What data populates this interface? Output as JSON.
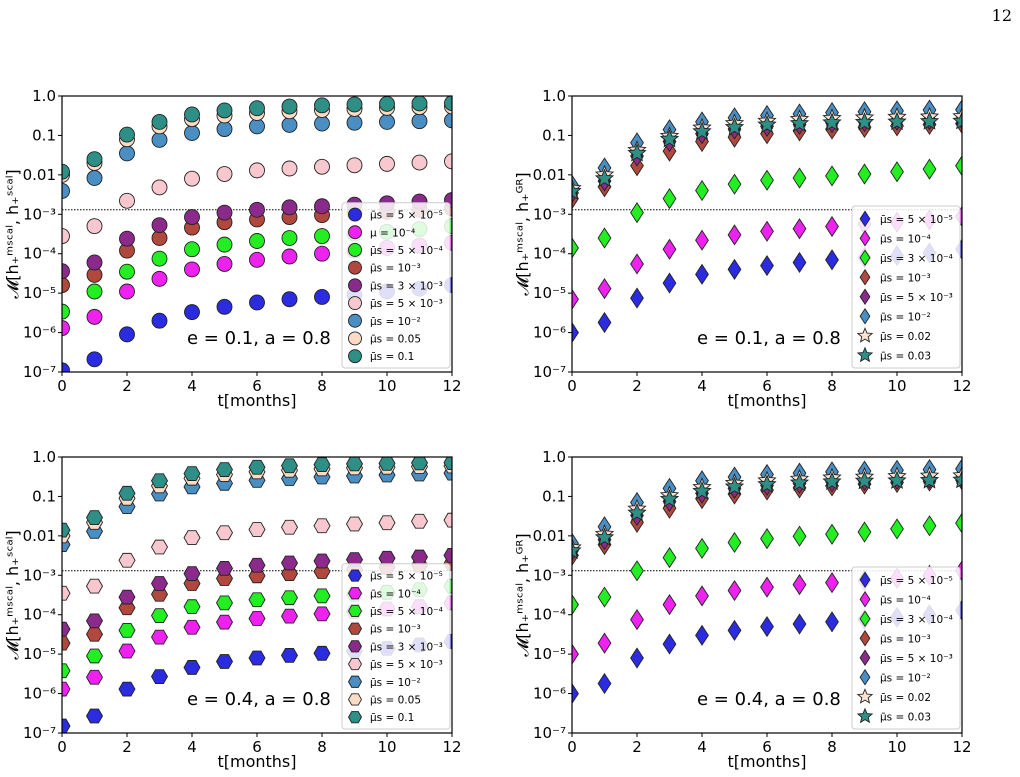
{
  "page": {
    "number": "12"
  },
  "chart_data": [
    {
      "type": "scatter",
      "marker": "circle",
      "annotation": "e = 0.1, a = 0.8",
      "xlabel": "t[months]",
      "ylabel": "𝓜[h₊ᵐˢᶜᵃˡ, h₊ˢᶜᵃˡ]",
      "yscale": "log",
      "xlim": [
        0,
        12
      ],
      "ylim": [
        1e-07,
        1
      ],
      "x_ticks": [
        "0",
        "2",
        "4",
        "6",
        "8",
        "10",
        "12"
      ],
      "y_ticks": [
        "10⁻⁷",
        "10⁻⁶",
        "10⁻⁵",
        "10⁻⁴",
        "10⁻³",
        "0.01",
        "0.1",
        "1.0"
      ],
      "reference_line": 0.0013,
      "legend_position": "lower-right",
      "x": [
        0,
        1,
        2,
        3,
        4,
        5,
        6,
        7,
        8,
        9,
        10,
        11,
        12
      ],
      "series": [
        {
          "name": "μ̄s = 5 × 10⁻⁵",
          "color": "#2b2bdf",
          "values": [
            1.1e-07,
            2.1e-07,
            9e-07,
            2e-06,
            3.3e-06,
            4.5e-06,
            5.8e-06,
            7e-06,
            8e-06,
            9e-06,
            1.1e-05,
            1.3e-05,
            1.6e-05
          ]
        },
        {
          "name": "μ = 10⁻⁴",
          "color": "#ee22ee",
          "values": [
            1.3e-06,
            2.5e-06,
            1.1e-05,
            2.3e-05,
            4e-05,
            5.5e-05,
            7e-05,
            8.5e-05,
            0.0001,
            0.00012,
            0.00014,
            0.00016,
            0.00019
          ]
        },
        {
          "name": "μ̄s = 5 × 10⁻⁴",
          "color": "#22ee22",
          "values": [
            3.4e-06,
            1.1e-05,
            3.5e-05,
            7.5e-05,
            0.00013,
            0.00017,
            0.00021,
            0.00025,
            0.00028,
            0.00032,
            0.00036,
            0.00042,
            0.0005
          ]
        },
        {
          "name": "μ̄s = 10⁻³",
          "color": "#b0483e",
          "values": [
            1.6e-05,
            2.9e-05,
            0.00012,
            0.00025,
            0.00046,
            0.00063,
            0.00074,
            0.00085,
            0.00095,
            0.00105,
            0.00115,
            0.0013,
            0.0014
          ]
        },
        {
          "name": "μ̄s = 3 × 10⁻³",
          "color": "#8b2a8b",
          "values": [
            3.6e-05,
            6e-05,
            0.00024,
            0.00053,
            0.00085,
            0.0011,
            0.0013,
            0.0015,
            0.0016,
            0.00175,
            0.0019,
            0.0021,
            0.0023
          ]
        },
        {
          "name": "μ̄s = 5 × 10⁻³",
          "color": "#f9c8cf",
          "values": [
            0.00028,
            0.0005,
            0.0022,
            0.0048,
            0.008,
            0.0105,
            0.013,
            0.0145,
            0.016,
            0.0175,
            0.019,
            0.0205,
            0.022
          ]
        },
        {
          "name": "μ̄s = 10⁻²",
          "color": "#4a8fc4",
          "values": [
            0.0039,
            0.0083,
            0.035,
            0.077,
            0.115,
            0.145,
            0.17,
            0.185,
            0.2,
            0.21,
            0.22,
            0.23,
            0.24
          ]
        },
        {
          "name": "μ̄s = 0.05",
          "color": "#fcdcc4",
          "values": [
            0.01,
            0.02,
            0.08,
            0.17,
            0.26,
            0.32,
            0.37,
            0.41,
            0.44,
            0.47,
            0.5,
            0.52,
            0.54
          ]
        },
        {
          "name": "μ̄s = 0.1",
          "color": "#2e8f86",
          "values": [
            0.012,
            0.025,
            0.105,
            0.22,
            0.34,
            0.43,
            0.49,
            0.54,
            0.58,
            0.61,
            0.63,
            0.65,
            0.66
          ]
        }
      ]
    },
    {
      "type": "scatter",
      "marker": "diamond",
      "annotation": "e = 0.1, a = 0.8",
      "xlabel": "t[months]",
      "ylabel": "𝓜[h₊ᵐˢᶜᵃˡ, h₊ᴳᴿ]",
      "yscale": "log",
      "xlim": [
        0,
        12
      ],
      "ylim": [
        1e-07,
        1
      ],
      "x_ticks": [
        "0",
        "2",
        "4",
        "6",
        "8",
        "10",
        "12"
      ],
      "y_ticks": [
        "10⁻⁷",
        "10⁻⁶",
        "10⁻⁵",
        "10⁻⁴",
        "10⁻³",
        "0.01",
        "0.1",
        "1.0"
      ],
      "reference_line": 0.0013,
      "legend_position": "lower-right",
      "x": [
        0,
        1,
        2,
        3,
        4,
        5,
        6,
        7,
        8,
        9,
        10,
        11,
        12
      ],
      "series": [
        {
          "name": "μ̄s = 5 × 10⁻⁵",
          "color": "#2b2bdf",
          "marker": "diamond",
          "values": [
            1e-06,
            1.8e-06,
            7.5e-06,
            1.8e-05,
            3e-05,
            4e-05,
            5e-05,
            6e-05,
            7e-05,
            8e-05,
            9e-05,
            0.000105,
            0.00013
          ]
        },
        {
          "name": "μ̄s = 10⁻⁴",
          "color": "#ee22ee",
          "marker": "diamond",
          "values": [
            7e-06,
            1.3e-05,
            5.5e-05,
            0.00013,
            0.00022,
            0.0003,
            0.00037,
            0.00043,
            0.00049,
            0.00056,
            0.00063,
            0.00072,
            0.00088
          ]
        },
        {
          "name": "μ̄s = 3 × 10⁻⁴",
          "color": "#22ee22",
          "marker": "diamond",
          "values": [
            0.00014,
            0.00025,
            0.0011,
            0.0025,
            0.004,
            0.0058,
            0.0073,
            0.0083,
            0.0094,
            0.0105,
            0.012,
            0.014,
            0.017
          ]
        },
        {
          "name": "μ̄s = 10⁻³",
          "color": "#b0483e",
          "marker": "diamond",
          "values": [
            0.0025,
            0.005,
            0.017,
            0.04,
            0.07,
            0.09,
            0.11,
            0.13,
            0.145,
            0.16,
            0.175,
            0.19,
            0.2
          ]
        },
        {
          "name": "μ̄s = 5 × 10⁻³",
          "color": "#8b2a8b",
          "marker": "diamond",
          "values": [
            0.0035,
            0.007,
            0.03,
            0.07,
            0.11,
            0.145,
            0.17,
            0.19,
            0.21,
            0.225,
            0.24,
            0.25,
            0.26
          ]
        },
        {
          "name": "μ̄s = 10⁻²",
          "color": "#4a8fc4",
          "marker": "diamond",
          "values": [
            0.0055,
            0.015,
            0.065,
            0.14,
            0.22,
            0.28,
            0.32,
            0.35,
            0.38,
            0.4,
            0.42,
            0.44,
            0.45
          ]
        },
        {
          "name": "μ̄s = 0.02",
          "color": "#fce2cf",
          "marker": "star",
          "values": [
            0.0045,
            0.01,
            0.042,
            0.095,
            0.155,
            0.2,
            0.23,
            0.255,
            0.27,
            0.28,
            0.29,
            0.295,
            0.3
          ]
        },
        {
          "name": "μ̄s = 0.03",
          "color": "#2e8f86",
          "marker": "star",
          "values": [
            0.0038,
            0.008,
            0.035,
            0.08,
            0.125,
            0.16,
            0.185,
            0.2,
            0.21,
            0.215,
            0.22,
            0.225,
            0.23
          ]
        }
      ]
    },
    {
      "type": "scatter",
      "marker": "hexagon",
      "annotation": "e = 0.4, a = 0.8",
      "xlabel": "t[months]",
      "ylabel": "𝓜[h₊ᵐˢᶜᵃˡ, h₊ˢᶜᵃˡ]",
      "yscale": "log",
      "xlim": [
        0,
        12
      ],
      "ylim": [
        1e-07,
        1
      ],
      "x_ticks": [
        "0",
        "2",
        "4",
        "6",
        "8",
        "10",
        "12"
      ],
      "y_ticks": [
        "10⁻⁷",
        "10⁻⁶",
        "10⁻⁵",
        "10⁻⁴",
        "10⁻³",
        "0.01",
        "0.1",
        "1.0"
      ],
      "reference_line": 0.0013,
      "legend_position": "lower-right",
      "x": [
        0,
        1,
        2,
        3,
        4,
        5,
        6,
        7,
        8,
        9,
        10,
        11,
        12
      ],
      "series": [
        {
          "name": "μ̄s = 5 × 10⁻⁵",
          "color": "#2b2bdf",
          "values": [
            1.5e-07,
            2.7e-07,
            1.3e-06,
            2.7e-06,
            4.6e-06,
            6.5e-06,
            8e-06,
            9.3e-06,
            1.05e-05,
            1.2e-05,
            1.4e-05,
            1.7e-05,
            2.1e-05
          ]
        },
        {
          "name": "μ̄s = 10⁻⁴",
          "color": "#ee22ee",
          "values": [
            1.3e-06,
            2.6e-06,
            1.2e-05,
            2.7e-05,
            4.8e-05,
            6.5e-05,
            8e-05,
            9.2e-05,
            0.000105,
            0.00012,
            0.00014,
            0.00016,
            0.0002
          ]
        },
        {
          "name": "μ̄s = 5 × 10⁻⁴",
          "color": "#22ee22",
          "values": [
            3.8e-06,
            9e-06,
            4e-05,
            9.5e-05,
            0.00016,
            0.0002,
            0.00024,
            0.00027,
            0.0003,
            0.00033,
            0.00037,
            0.00043,
            0.00053
          ]
        },
        {
          "name": "μ̄s = 10⁻³",
          "color": "#b0483e",
          "values": [
            1.9e-05,
            3.2e-05,
            0.00015,
            0.00033,
            0.00062,
            0.00083,
            0.00097,
            0.0011,
            0.00125,
            0.0014,
            0.0016,
            0.0018,
            0.002
          ]
        },
        {
          "name": "μ̄s = 3 × 10⁻³",
          "color": "#8b2a8b",
          "values": [
            4.3e-05,
            7e-05,
            0.00028,
            0.00062,
            0.0011,
            0.0015,
            0.0018,
            0.00205,
            0.0023,
            0.0025,
            0.0027,
            0.0029,
            0.0032
          ]
        },
        {
          "name": "μ̄s = 5 × 10⁻³",
          "color": "#f9c8cf",
          "values": [
            0.00035,
            0.00053,
            0.0024,
            0.0052,
            0.009,
            0.012,
            0.0145,
            0.0165,
            0.018,
            0.02,
            0.0215,
            0.0235,
            0.025
          ]
        },
        {
          "name": "μ̄s = 10⁻²",
          "color": "#4a8fc4",
          "values": [
            0.006,
            0.013,
            0.055,
            0.115,
            0.175,
            0.215,
            0.255,
            0.285,
            0.31,
            0.33,
            0.35,
            0.37,
            0.39
          ]
        },
        {
          "name": "μ̄s = 0.05",
          "color": "#fcdcc4",
          "values": [
            0.01,
            0.022,
            0.09,
            0.185,
            0.29,
            0.36,
            0.42,
            0.46,
            0.5,
            0.53,
            0.55,
            0.57,
            0.59
          ]
        },
        {
          "name": "μ̄s = 0.1",
          "color": "#2e8f86",
          "values": [
            0.014,
            0.029,
            0.12,
            0.25,
            0.38,
            0.48,
            0.55,
            0.6,
            0.64,
            0.67,
            0.69,
            0.71,
            0.72
          ]
        }
      ]
    },
    {
      "type": "scatter",
      "marker": "diamond",
      "annotation": "e = 0.4, a = 0.8",
      "xlabel": "t[months]",
      "ylabel": "𝓜[h₊ᵐˢᶜᵃˡ, h₊ᴳᴿ]",
      "yscale": "log",
      "xlim": [
        0,
        12
      ],
      "ylim": [
        1e-07,
        1
      ],
      "x_ticks": [
        "0",
        "2",
        "4",
        "6",
        "8",
        "10",
        "12"
      ],
      "y_ticks": [
        "10⁻⁷",
        "10⁻⁶",
        "10⁻⁵",
        "10⁻⁴",
        "10⁻³",
        "0.01",
        "0.1",
        "1.0"
      ],
      "reference_line": 0.0013,
      "legend_position": "lower-right",
      "x": [
        0,
        1,
        2,
        3,
        4,
        5,
        6,
        7,
        8,
        9,
        10,
        11,
        12
      ],
      "series": [
        {
          "name": "μ̄s = 5 × 10⁻⁵",
          "color": "#2b2bdf",
          "marker": "diamond",
          "values": [
            1e-06,
            1.8e-06,
            8e-06,
            1.8e-05,
            3e-05,
            4e-05,
            5e-05,
            5.8e-05,
            6.6e-05,
            7.6e-05,
            8.6e-05,
            0.0001,
            0.00013
          ]
        },
        {
          "name": "μ̄s = 10⁻⁴",
          "color": "#ee22ee",
          "marker": "diamond",
          "values": [
            1e-05,
            1.9e-05,
            7.5e-05,
            0.00018,
            0.0003,
            0.00041,
            0.0005,
            0.00058,
            0.00065,
            0.00074,
            0.00084,
            0.001,
            0.0013
          ]
        },
        {
          "name": "μ̄s = 3 × 10⁻⁴",
          "color": "#22ee22",
          "marker": "diamond",
          "values": [
            0.00018,
            0.00028,
            0.0013,
            0.0028,
            0.0048,
            0.0068,
            0.0085,
            0.0098,
            0.011,
            0.0125,
            0.015,
            0.018,
            0.021
          ]
        },
        {
          "name": "μ̄s = 10⁻³",
          "color": "#b0483e",
          "marker": "diamond",
          "values": [
            0.0032,
            0.006,
            0.022,
            0.05,
            0.088,
            0.115,
            0.145,
            0.165,
            0.185,
            0.205,
            0.225,
            0.245,
            0.26
          ]
        },
        {
          "name": "μ̄s = 5 × 10⁻³",
          "color": "#8b2a8b",
          "marker": "diamond",
          "values": [
            0.0042,
            0.008,
            0.033,
            0.075,
            0.12,
            0.16,
            0.19,
            0.215,
            0.235,
            0.255,
            0.27,
            0.285,
            0.3
          ]
        },
        {
          "name": "μ̄s = 10⁻²",
          "color": "#4a8fc4",
          "marker": "diamond",
          "values": [
            0.0065,
            0.017,
            0.07,
            0.16,
            0.25,
            0.31,
            0.36,
            0.39,
            0.42,
            0.44,
            0.46,
            0.48,
            0.5
          ]
        },
        {
          "name": "μ̄s = 0.02",
          "color": "#fce2cf",
          "marker": "star",
          "values": [
            0.005,
            0.011,
            0.048,
            0.105,
            0.17,
            0.215,
            0.25,
            0.275,
            0.295,
            0.31,
            0.32,
            0.33,
            0.335
          ]
        },
        {
          "name": "μ̄s = 0.03",
          "color": "#2e8f86",
          "marker": "star",
          "values": [
            0.0042,
            0.009,
            0.038,
            0.085,
            0.135,
            0.175,
            0.2,
            0.22,
            0.235,
            0.245,
            0.25,
            0.255,
            0.26
          ]
        }
      ]
    }
  ]
}
